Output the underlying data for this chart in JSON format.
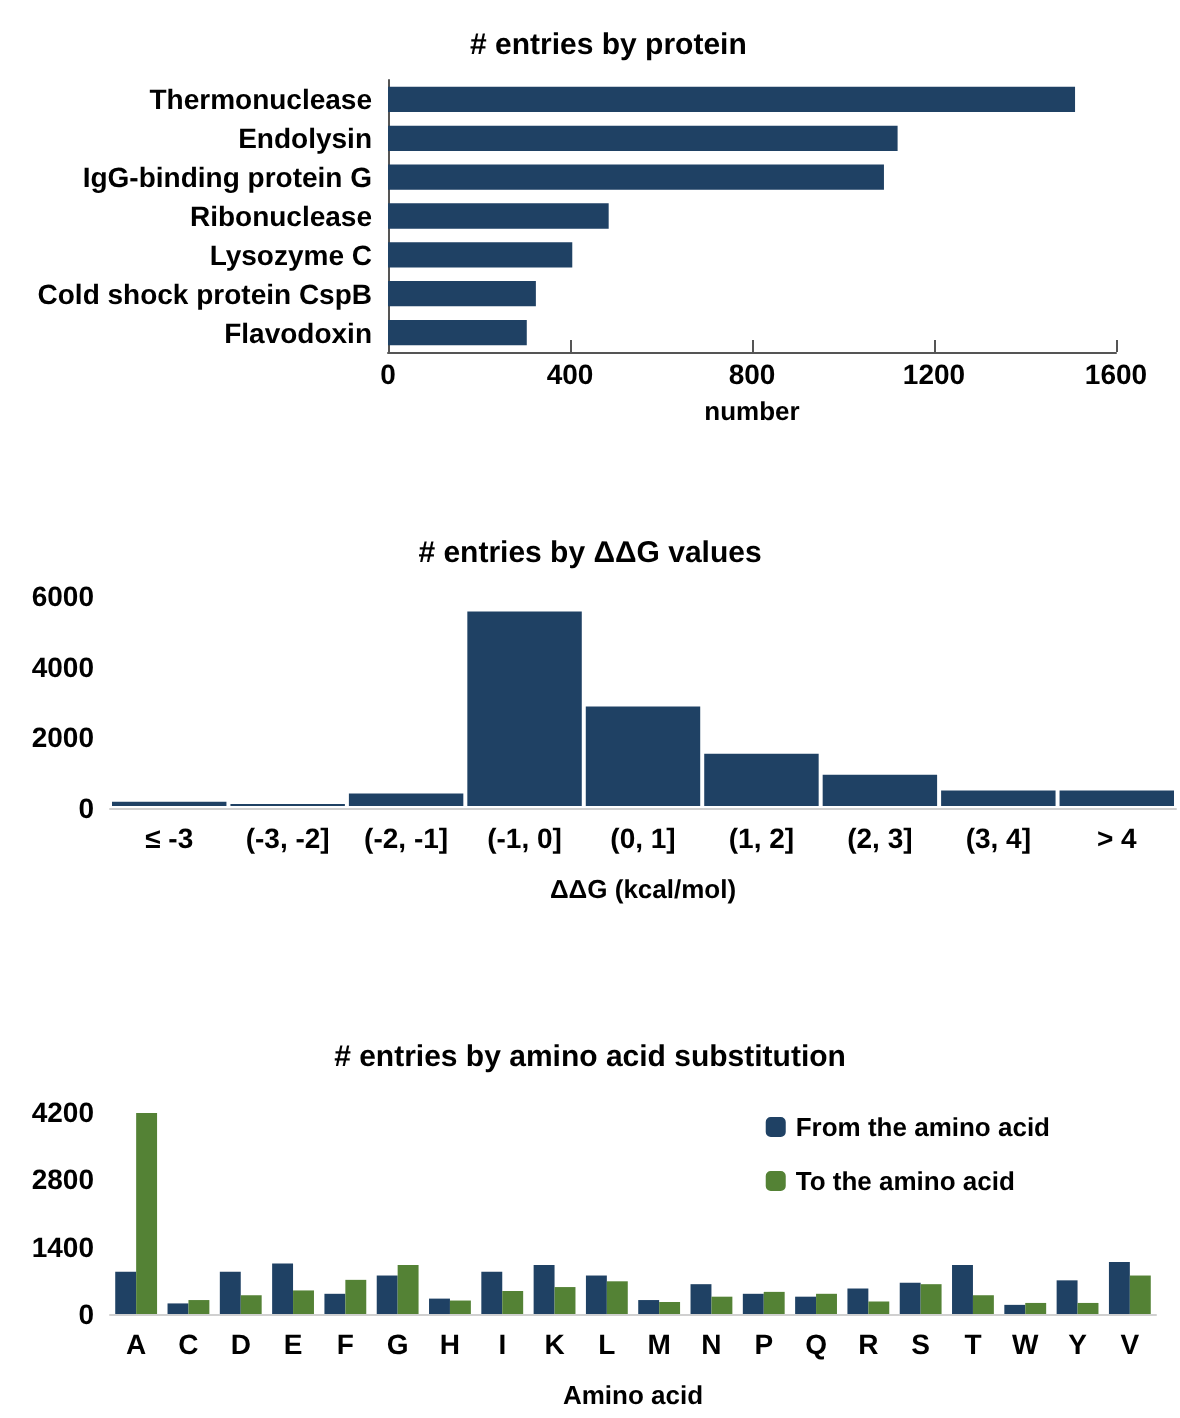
{
  "chart_data": [
    {
      "type": "bar",
      "orientation": "horizontal",
      "title": "# entries by protein",
      "xlabel": "number",
      "categories": [
        "Thermonuclease",
        "Endolysin",
        "IgG-binding protein G",
        "Ribonuclease",
        "Lysozyme C",
        "Cold shock protein CspB",
        "Flavodoxin"
      ],
      "values": [
        1510,
        1120,
        1090,
        485,
        405,
        325,
        305
      ],
      "color": "#1f4164",
      "xlim": [
        0,
        1600
      ],
      "xticks": [
        0,
        400,
        800,
        1200,
        1600
      ]
    },
    {
      "type": "bar",
      "title": "# entries by ΔΔG values",
      "xlabel": "ΔΔG (kcal/mol)",
      "categories": [
        "≤ -3",
        "(-3, -2]",
        "(-2, -1]",
        "(-1, 0]",
        "(0, 1]",
        "(1, 2]",
        "(2, 3]",
        "(3, 4]",
        "> 4"
      ],
      "values": [
        230,
        170,
        470,
        5620,
        2930,
        1590,
        1000,
        550,
        550
      ],
      "color": "#1f4164",
      "ylim": [
        0,
        6000
      ],
      "yticks": [
        0,
        2000,
        4000,
        6000
      ]
    },
    {
      "type": "bar",
      "title": "# entries by amino acid substitution",
      "xlabel": "Amino acid",
      "categories": [
        "A",
        "C",
        "D",
        "E",
        "F",
        "G",
        "H",
        "I",
        "K",
        "L",
        "M",
        "N",
        "P",
        "Q",
        "R",
        "S",
        "T",
        "W",
        "Y",
        "V"
      ],
      "legend": "top right",
      "ylim": [
        0,
        4200
      ],
      "yticks": [
        0,
        1400,
        2800,
        4200
      ],
      "series": [
        {
          "name": "From the amino acid",
          "color": "#1f4164",
          "values": [
            880,
            220,
            880,
            1050,
            420,
            800,
            320,
            880,
            1020,
            800,
            290,
            620,
            420,
            360,
            530,
            650,
            1020,
            190,
            700,
            1080
          ]
        },
        {
          "name": "To the amino acid",
          "color": "#548235",
          "values": [
            4180,
            290,
            390,
            490,
            710,
            1020,
            280,
            480,
            560,
            680,
            250,
            360,
            460,
            420,
            260,
            620,
            390,
            230,
            230,
            800
          ]
        }
      ]
    }
  ]
}
